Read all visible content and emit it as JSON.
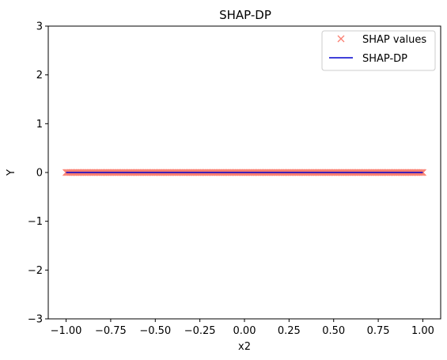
{
  "chart_data": {
    "type": "scatter",
    "title": "SHAP-DP",
    "xlabel": "x2",
    "ylabel": "Y",
    "xlim": [
      -1.1,
      1.1
    ],
    "ylim": [
      -3,
      3
    ],
    "xticks": [
      -1.0,
      -0.75,
      -0.5,
      -0.25,
      0.0,
      0.25,
      0.5,
      0.75,
      1.0
    ],
    "xtick_labels": [
      "−1.00",
      "−0.75",
      "−0.50",
      "−0.25",
      "0.00",
      "0.25",
      "0.50",
      "0.75",
      "1.00"
    ],
    "yticks": [
      -3,
      -2,
      -1,
      0,
      1,
      2,
      3
    ],
    "ytick_labels": [
      "−3",
      "−2",
      "−1",
      "0",
      "1",
      "2",
      "3"
    ],
    "grid": false,
    "legend_position": "top-right",
    "series": [
      {
        "name": "SHAP values",
        "kind": "markers",
        "marker": "x",
        "color": "#fa8072",
        "x_range": [
          -1.0,
          1.0
        ],
        "y": 0
      },
      {
        "name": "SHAP-DP",
        "kind": "line",
        "color": "#0000cd",
        "x": [
          -1.0,
          1.0
        ],
        "y": [
          0,
          0
        ]
      }
    ]
  }
}
